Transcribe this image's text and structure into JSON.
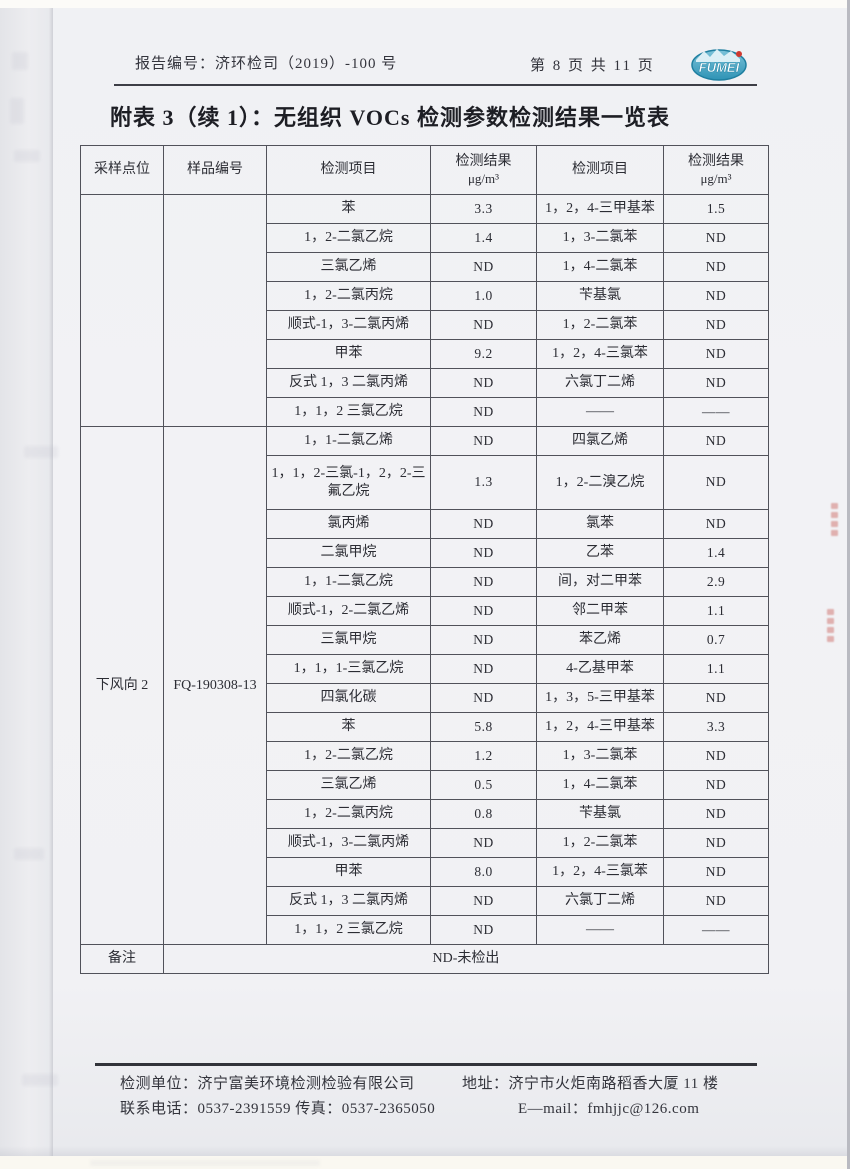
{
  "page_header": {
    "report_no": "报告编号：济环检司（2019）-100 号",
    "page_info": "第 8 页 共 11 页",
    "logo_text": "FUMEI"
  },
  "title": "附表 3（续 1）：无组织 VOCs 检测参数检测结果一览表",
  "table": {
    "headers": {
      "col1": "采样点位",
      "col2": "样品编号",
      "col3": "检测项目",
      "col4_line1": "检测结果",
      "col4_line2": "μg/m³",
      "col5": "检测项目",
      "col6_line1": "检测结果",
      "col6_line2": "μg/m³"
    },
    "sections": [
      {
        "point": "",
        "sample_no": "",
        "rows": [
          {
            "item_l": "苯",
            "val_l": "3.3",
            "item_r": "1，2，4-三甲基苯",
            "val_r": "1.5"
          },
          {
            "item_l": "1，2-二氯乙烷",
            "val_l": "1.4",
            "item_r": "1，3-二氯苯",
            "val_r": "ND"
          },
          {
            "item_l": "三氯乙烯",
            "val_l": "ND",
            "item_r": "1，4-二氯苯",
            "val_r": "ND"
          },
          {
            "item_l": "1，2-二氯丙烷",
            "val_l": "1.0",
            "item_r": "苄基氯",
            "val_r": "ND"
          },
          {
            "item_l": "顺式-1，3-二氯丙烯",
            "val_l": "ND",
            "item_r": "1，2-二氯苯",
            "val_r": "ND"
          },
          {
            "item_l": "甲苯",
            "val_l": "9.2",
            "item_r": "1，2，4-三氯苯",
            "val_r": "ND"
          },
          {
            "item_l": "反式 1，3 二氯丙烯",
            "val_l": "ND",
            "item_r": "六氯丁二烯",
            "val_r": "ND"
          },
          {
            "item_l": "1，1，2 三氯乙烷",
            "val_l": "ND",
            "item_r": "——",
            "val_r": "——"
          }
        ]
      },
      {
        "point": "下风向 2",
        "sample_no": "FQ-190308-13",
        "rows": [
          {
            "item_l": "1，1-二氯乙烯",
            "val_l": "ND",
            "item_r": "四氯乙烯",
            "val_r": "ND"
          },
          {
            "item_l": "1，1，2-三氯-1，2，2-三氟乙烷",
            "val_l": "1.3",
            "item_r": "1，2-二溴乙烷",
            "val_r": "ND"
          },
          {
            "item_l": "氯丙烯",
            "val_l": "ND",
            "item_r": "氯苯",
            "val_r": "ND"
          },
          {
            "item_l": "二氯甲烷",
            "val_l": "ND",
            "item_r": "乙苯",
            "val_r": "1.4"
          },
          {
            "item_l": "1，1-二氯乙烷",
            "val_l": "ND",
            "item_r": "间，对二甲苯",
            "val_r": "2.9"
          },
          {
            "item_l": "顺式-1，2-二氯乙烯",
            "val_l": "ND",
            "item_r": "邻二甲苯",
            "val_r": "1.1"
          },
          {
            "item_l": "三氯甲烷",
            "val_l": "ND",
            "item_r": "苯乙烯",
            "val_r": "0.7"
          },
          {
            "item_l": "1，1，1-三氯乙烷",
            "val_l": "ND",
            "item_r": "4-乙基甲苯",
            "val_r": "1.1"
          },
          {
            "item_l": "四氯化碳",
            "val_l": "ND",
            "item_r": "1，3，5-三甲基苯",
            "val_r": "ND"
          },
          {
            "item_l": "苯",
            "val_l": "5.8",
            "item_r": "1，2，4-三甲基苯",
            "val_r": "3.3"
          },
          {
            "item_l": "1，2-二氯乙烷",
            "val_l": "1.2",
            "item_r": "1，3-二氯苯",
            "val_r": "ND"
          },
          {
            "item_l": "三氯乙烯",
            "val_l": "0.5",
            "item_r": "1，4-二氯苯",
            "val_r": "ND"
          },
          {
            "item_l": "1，2-二氯丙烷",
            "val_l": "0.8",
            "item_r": "苄基氯",
            "val_r": "ND"
          },
          {
            "item_l": "顺式-1，3-二氯丙烯",
            "val_l": "ND",
            "item_r": "1，2-二氯苯",
            "val_r": "ND"
          },
          {
            "item_l": "甲苯",
            "val_l": "8.0",
            "item_r": "1，2，4-三氯苯",
            "val_r": "ND"
          },
          {
            "item_l": "反式 1，3 二氯丙烯",
            "val_l": "ND",
            "item_r": "六氯丁二烯",
            "val_r": "ND"
          },
          {
            "item_l": "1，1，2 三氯乙烷",
            "val_l": "ND",
            "item_r": "——",
            "val_r": "——"
          }
        ]
      }
    ],
    "note_label": "备注",
    "note_value": "ND-未检出"
  },
  "page_footer": {
    "org": "检测单位：济宁富美环境检测检验有限公司",
    "address": "地址：济宁市火炬南路稻香大厦 11 楼",
    "phone": "联系电话：0537-2391559 传真：0537-2365050",
    "email": "E—mail：fmhjjc@126.com"
  },
  "colors": {
    "logo_teal": "#3a9fbe",
    "logo_teal_dark": "#1f7fa0",
    "stamp_red": "#c2473e",
    "table_border": "#51525a"
  }
}
